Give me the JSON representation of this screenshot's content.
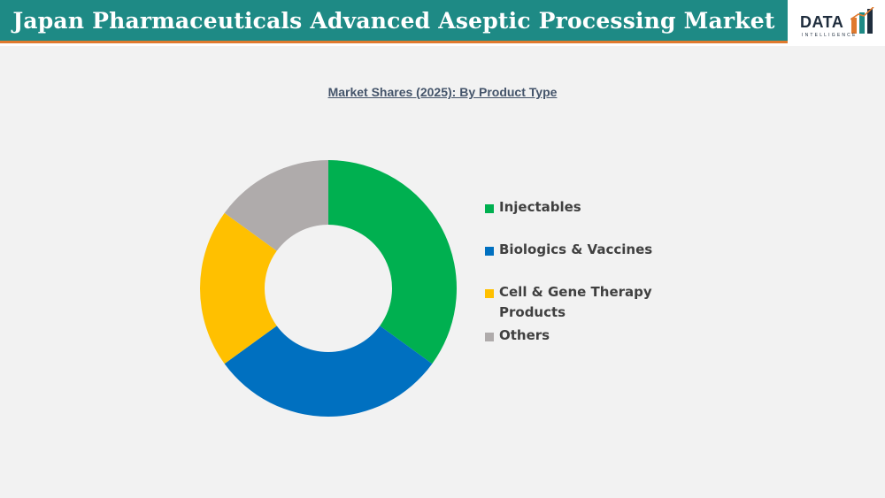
{
  "header": {
    "title": "Japan Pharmaceuticals Advanced Aseptic Processing Market",
    "logo_word": "DATA",
    "logo_sub": "INTELLIGENCE"
  },
  "colors": {
    "title_bar": "#1e8a85",
    "accent": "#e07a2e",
    "background": "#f2f2f2"
  },
  "chart_data": {
    "type": "pie",
    "donut": true,
    "title": "Market Shares (2025): By Product Type",
    "legend_position": "right",
    "series": [
      {
        "name": "Injectables",
        "value": 35,
        "color": "#00b050"
      },
      {
        "name": "Biologics & Vaccines",
        "value": 30,
        "color": "#0070c0"
      },
      {
        "name": "Cell & Gene Therapy Products",
        "value": 20,
        "color": "#ffc000"
      },
      {
        "name": "Others",
        "value": 15,
        "color": "#afabab"
      }
    ]
  }
}
